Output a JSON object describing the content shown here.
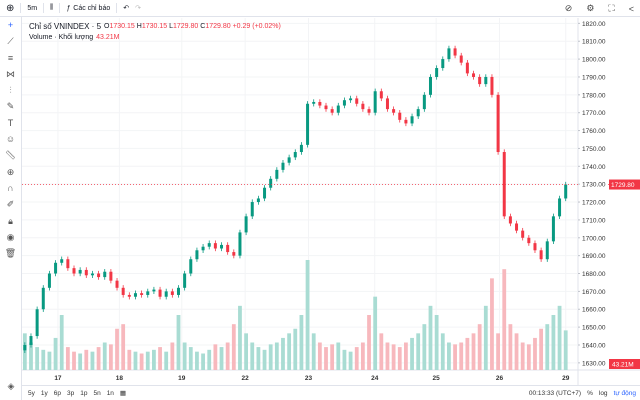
{
  "toolbar": {
    "add_icon": "plus-circle-icon",
    "interval": "5m",
    "chart_type_icon": "candles-icon",
    "indicators_label": "Các chỉ báo",
    "undo_icon": "undo-icon",
    "redo_icon": "redo-icon",
    "right_icons": [
      "replay-icon",
      "gear-icon",
      "fullscreen-icon",
      "share-icon"
    ]
  },
  "sidebar": {
    "tools": [
      "crosshair-icon",
      "trend-line-icon",
      "fib-icon",
      "pattern-icon",
      "measure-icon",
      "brush-icon",
      "text-icon",
      "emoji-icon",
      "ruler-icon",
      "zoom-in-icon",
      "magnet-icon",
      "lock-draw-icon",
      "lock-icon",
      "eye-icon",
      "trash-icon"
    ],
    "bottom_icon": "layers-icon"
  },
  "legend": {
    "symbol": "Chỉ số VNINDEX · 5",
    "o_label": "O",
    "o": "1730.15",
    "h_label": "H",
    "h": "1730.15",
    "l_label": "L",
    "l": "1729.80",
    "c_label": "C",
    "c": "1729.80",
    "change": "+0.29 (+0.02%)",
    "volume_label": "Volume · Khối lượng",
    "volume_value": "43.21M"
  },
  "bottom": {
    "ranges": [
      "5y",
      "1y",
      "6p",
      "3p",
      "1p",
      "5n",
      "1n"
    ],
    "time": "00:13:33 (UTC+7)",
    "percent": "%",
    "log": "log",
    "auto": "tự động"
  },
  "colors": {
    "up": "#089981",
    "down": "#f23645",
    "up_vol": "#a9dcd3",
    "down_vol": "#f7b8bd"
  },
  "chart_data": {
    "type": "candlestick",
    "y_ticks": [
      "1820.00",
      "1810.00",
      "1800.00",
      "1790.00",
      "1780.00",
      "1770.00",
      "1760.00",
      "1750.00",
      "1740.00",
      "1730.00",
      "1720.00",
      "1710.00",
      "1700.00",
      "1690.00",
      "1680.00",
      "1670.00",
      "1660.00",
      "1650.00",
      "1640.00",
      "1630.00"
    ],
    "ylim": [
      1626,
      1823
    ],
    "x_ticks": [
      "17",
      "18",
      "19",
      "22",
      "23",
      "24",
      "25",
      "26",
      "29"
    ],
    "last_price": "1729.80",
    "last_volume": "43.21M",
    "closes": [
      1640,
      1645,
      1660,
      1672,
      1680,
      1686,
      1688,
      1683,
      1680,
      1682,
      1679,
      1680,
      1678,
      1681,
      1676,
      1672,
      1668,
      1667,
      1669,
      1668,
      1670,
      1671,
      1667,
      1670,
      1668,
      1672,
      1680,
      1688,
      1693,
      1695,
      1697,
      1694,
      1696,
      1692,
      1690,
      1703,
      1712,
      1720,
      1722,
      1728,
      1733,
      1738,
      1742,
      1745,
      1748,
      1752,
      1775,
      1776,
      1774,
      1772,
      1770,
      1774,
      1777,
      1778,
      1775,
      1772,
      1770,
      1782,
      1778,
      1772,
      1770,
      1766,
      1764,
      1768,
      1772,
      1780,
      1790,
      1795,
      1800,
      1806,
      1802,
      1798,
      1792,
      1790,
      1786,
      1790,
      1780,
      1748,
      1712,
      1708,
      1704,
      1700,
      1697,
      1693,
      1688,
      1698,
      1712,
      1722,
      1729.8
    ],
    "volumes_m": [
      40,
      30,
      25,
      22,
      20,
      35,
      60,
      25,
      20,
      18,
      22,
      20,
      25,
      30,
      28,
      45,
      50,
      22,
      20,
      18,
      20,
      22,
      25,
      20,
      30,
      60,
      30,
      25,
      20,
      18,
      22,
      28,
      25,
      30,
      50,
      70,
      40,
      30,
      25,
      22,
      28,
      30,
      35,
      40,
      45,
      60,
      120,
      40,
      30,
      25,
      28,
      30,
      22,
      20,
      25,
      30,
      60,
      80,
      40,
      30,
      28,
      25,
      30,
      35,
      40,
      50,
      70,
      60,
      40,
      30,
      28,
      30,
      35,
      40,
      50,
      70,
      100,
      40,
      110,
      50,
      40,
      30,
      28,
      35,
      45,
      50,
      60,
      70,
      43.21
    ]
  }
}
